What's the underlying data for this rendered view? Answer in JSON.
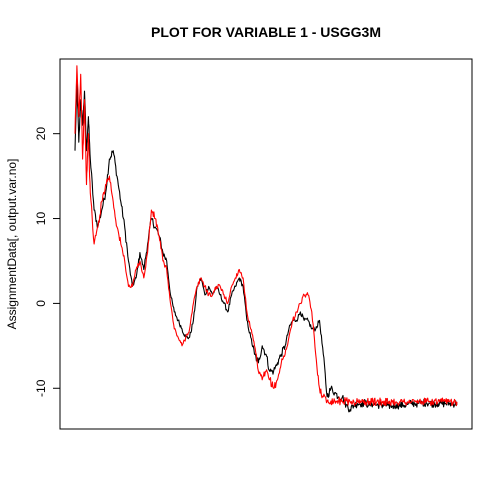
{
  "chart_data": {
    "type": "line",
    "title": "PLOT FOR VARIABLE 1 - USGG3M",
    "xlabel": "",
    "ylabel": "AssignmentData[, output.var.no]",
    "xlim": [
      0,
      100
    ],
    "ylim": [
      -14.8,
      28.8
    ],
    "yticks": [
      -10,
      0,
      10,
      20
    ],
    "ytick_labels": [
      "-10",
      "0",
      "10",
      "20"
    ],
    "xaxis_shown": false,
    "grid": false,
    "legend": "none",
    "series": [
      {
        "color": "#000000",
        "x": [
          0,
          0.5,
          1,
          1.5,
          2,
          2.5,
          3,
          3.5,
          4,
          5,
          6,
          7,
          8,
          9,
          10,
          11,
          12,
          13,
          14,
          15,
          16,
          17,
          18,
          19,
          20,
          21,
          22,
          23,
          24,
          25,
          26,
          27,
          28,
          29,
          30,
          31,
          32,
          33,
          34,
          35,
          36,
          37,
          38,
          39,
          40,
          41,
          42,
          43,
          44,
          45,
          46,
          47,
          48,
          49,
          50,
          51,
          52,
          53,
          54,
          55,
          56,
          57,
          58,
          59,
          60,
          61,
          62,
          63,
          64,
          65,
          66,
          67,
          68,
          69,
          70,
          71,
          72,
          73,
          74,
          75,
          76,
          77,
          78,
          79,
          80,
          80.5,
          81,
          81.5,
          82,
          83,
          84,
          85,
          86,
          87,
          88,
          89,
          90,
          91,
          92,
          93,
          94,
          95,
          96,
          97,
          98,
          99,
          100
        ],
        "y": [
          18,
          26,
          19,
          24,
          21,
          25,
          18,
          22,
          17,
          11,
          9,
          11,
          13,
          17,
          18,
          15,
          12,
          9,
          5,
          2,
          3,
          6,
          4,
          7,
          10,
          9,
          8,
          6,
          5,
          1,
          -1,
          -2,
          -3,
          -4,
          -4,
          -2,
          2,
          3,
          1,
          2,
          1,
          2,
          1,
          0,
          -1,
          1,
          2,
          3,
          2,
          -2,
          -4,
          -6,
          -7,
          -5,
          -6,
          -8,
          -8,
          -7,
          -6,
          -5,
          -3,
          -2,
          -2,
          -1,
          -2,
          -2,
          -3,
          -3,
          -2,
          -6,
          -11,
          -10,
          -10.5,
          -11,
          -11,
          -12,
          -12.5,
          -12,
          -11.8,
          -11.8,
          -11.7,
          -12,
          -11.8,
          -12,
          -11.9,
          -12,
          -11.9,
          -12,
          -12,
          -12.1,
          -12,
          -12,
          -12,
          -11.9,
          -11.8,
          -11.8,
          -11.8,
          -11.7,
          -11.7,
          -11.8,
          -11.8,
          -11.8,
          -11.8,
          -11.8,
          -11.8,
          -11.8,
          -11.8
        ]
      },
      {
        "color": "#ff0000",
        "x": [
          0,
          0.5,
          1,
          1.5,
          2,
          2.5,
          3,
          3.5,
          4,
          5,
          6,
          7,
          8,
          9,
          10,
          11,
          12,
          13,
          14,
          15,
          16,
          17,
          18,
          19,
          20,
          21,
          22,
          23,
          24,
          25,
          26,
          27,
          28,
          29,
          30,
          31,
          32,
          33,
          34,
          35,
          36,
          37,
          38,
          39,
          40,
          41,
          42,
          43,
          44,
          45,
          46,
          47,
          48,
          49,
          50,
          51,
          52,
          53,
          54,
          55,
          56,
          57,
          58,
          59,
          60,
          61,
          62,
          63,
          64,
          65,
          66,
          67,
          68,
          69,
          70,
          71,
          72,
          73,
          74,
          75,
          76,
          77,
          78,
          79,
          80,
          80.5,
          81,
          81.5,
          82,
          83,
          84,
          85,
          86,
          87,
          88,
          89,
          90,
          91,
          92,
          93,
          94,
          95,
          96,
          97,
          98,
          99,
          100
        ],
        "y": [
          20,
          28,
          22,
          27,
          17,
          24,
          14,
          20,
          13,
          7,
          9,
          12,
          14,
          15,
          12,
          9,
          7,
          5,
          2,
          2,
          4,
          5,
          3,
          6,
          11,
          10,
          8,
          5,
          4,
          0,
          -3,
          -4,
          -5,
          -4,
          -3,
          0,
          2,
          3,
          2,
          1,
          1,
          2,
          2,
          1,
          0,
          2,
          3,
          4,
          3,
          -1,
          -3,
          -5,
          -8,
          -9,
          -8,
          -9,
          -10,
          -9,
          -7,
          -6,
          -4,
          -2,
          -1,
          0,
          1,
          1,
          -1,
          -6,
          -10,
          -11,
          -11.5,
          -11.5,
          -11.5,
          -11.5,
          -11.5,
          -11.5,
          -11.6,
          -11.6,
          -11.6,
          -11.6,
          -11.6,
          -11.6,
          -11.6,
          -11.6,
          -11.6,
          -11.6,
          -11.6,
          -11.6,
          -11.6,
          -11.6,
          -11.6,
          -11.6,
          -11.6,
          -11.6,
          -11.6,
          -11.6,
          -11.6,
          -11.6,
          -11.6,
          -11.6,
          -11.6,
          -11.6,
          -11.6,
          -11.6,
          -11.6,
          -11.6,
          -11.6
        ]
      }
    ]
  }
}
